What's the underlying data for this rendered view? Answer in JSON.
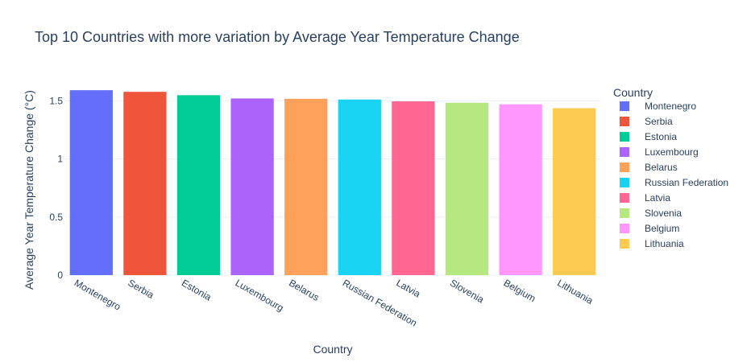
{
  "chart_data": {
    "type": "bar",
    "title": "Top 10 Countries with more variation by Average Year Temperature Change",
    "xlabel": "Country",
    "ylabel": "Average Year Temperature Change (°C)",
    "categories": [
      "Montenegro",
      "Serbia",
      "Estonia",
      "Luxembourg",
      "Belarus",
      "Russian Federation",
      "Latvia",
      "Slovenia",
      "Belgium",
      "Lithuania"
    ],
    "values": [
      1.591,
      1.577,
      1.548,
      1.52,
      1.517,
      1.511,
      1.495,
      1.483,
      1.47,
      1.436
    ],
    "colors": [
      "#636efa",
      "#EF553B",
      "#00cc96",
      "#ab63fa",
      "#FFA15A",
      "#19d3f3",
      "#FF6692",
      "#B6E880",
      "#FF97FF",
      "#FECB52"
    ],
    "ylim": [
      0,
      1.675
    ],
    "yticks": [
      0,
      0.5,
      1,
      1.5
    ],
    "ytick_labels": [
      "0",
      "0.5",
      "1",
      "1.5"
    ],
    "grid": true,
    "legend": {
      "title": "Country",
      "placement": "right",
      "entries": [
        "Montenegro",
        "Serbia",
        "Estonia",
        "Luxembourg",
        "Belarus",
        "Russian Federation",
        "Latvia",
        "Slovenia",
        "Belgium",
        "Lithuania"
      ]
    }
  }
}
